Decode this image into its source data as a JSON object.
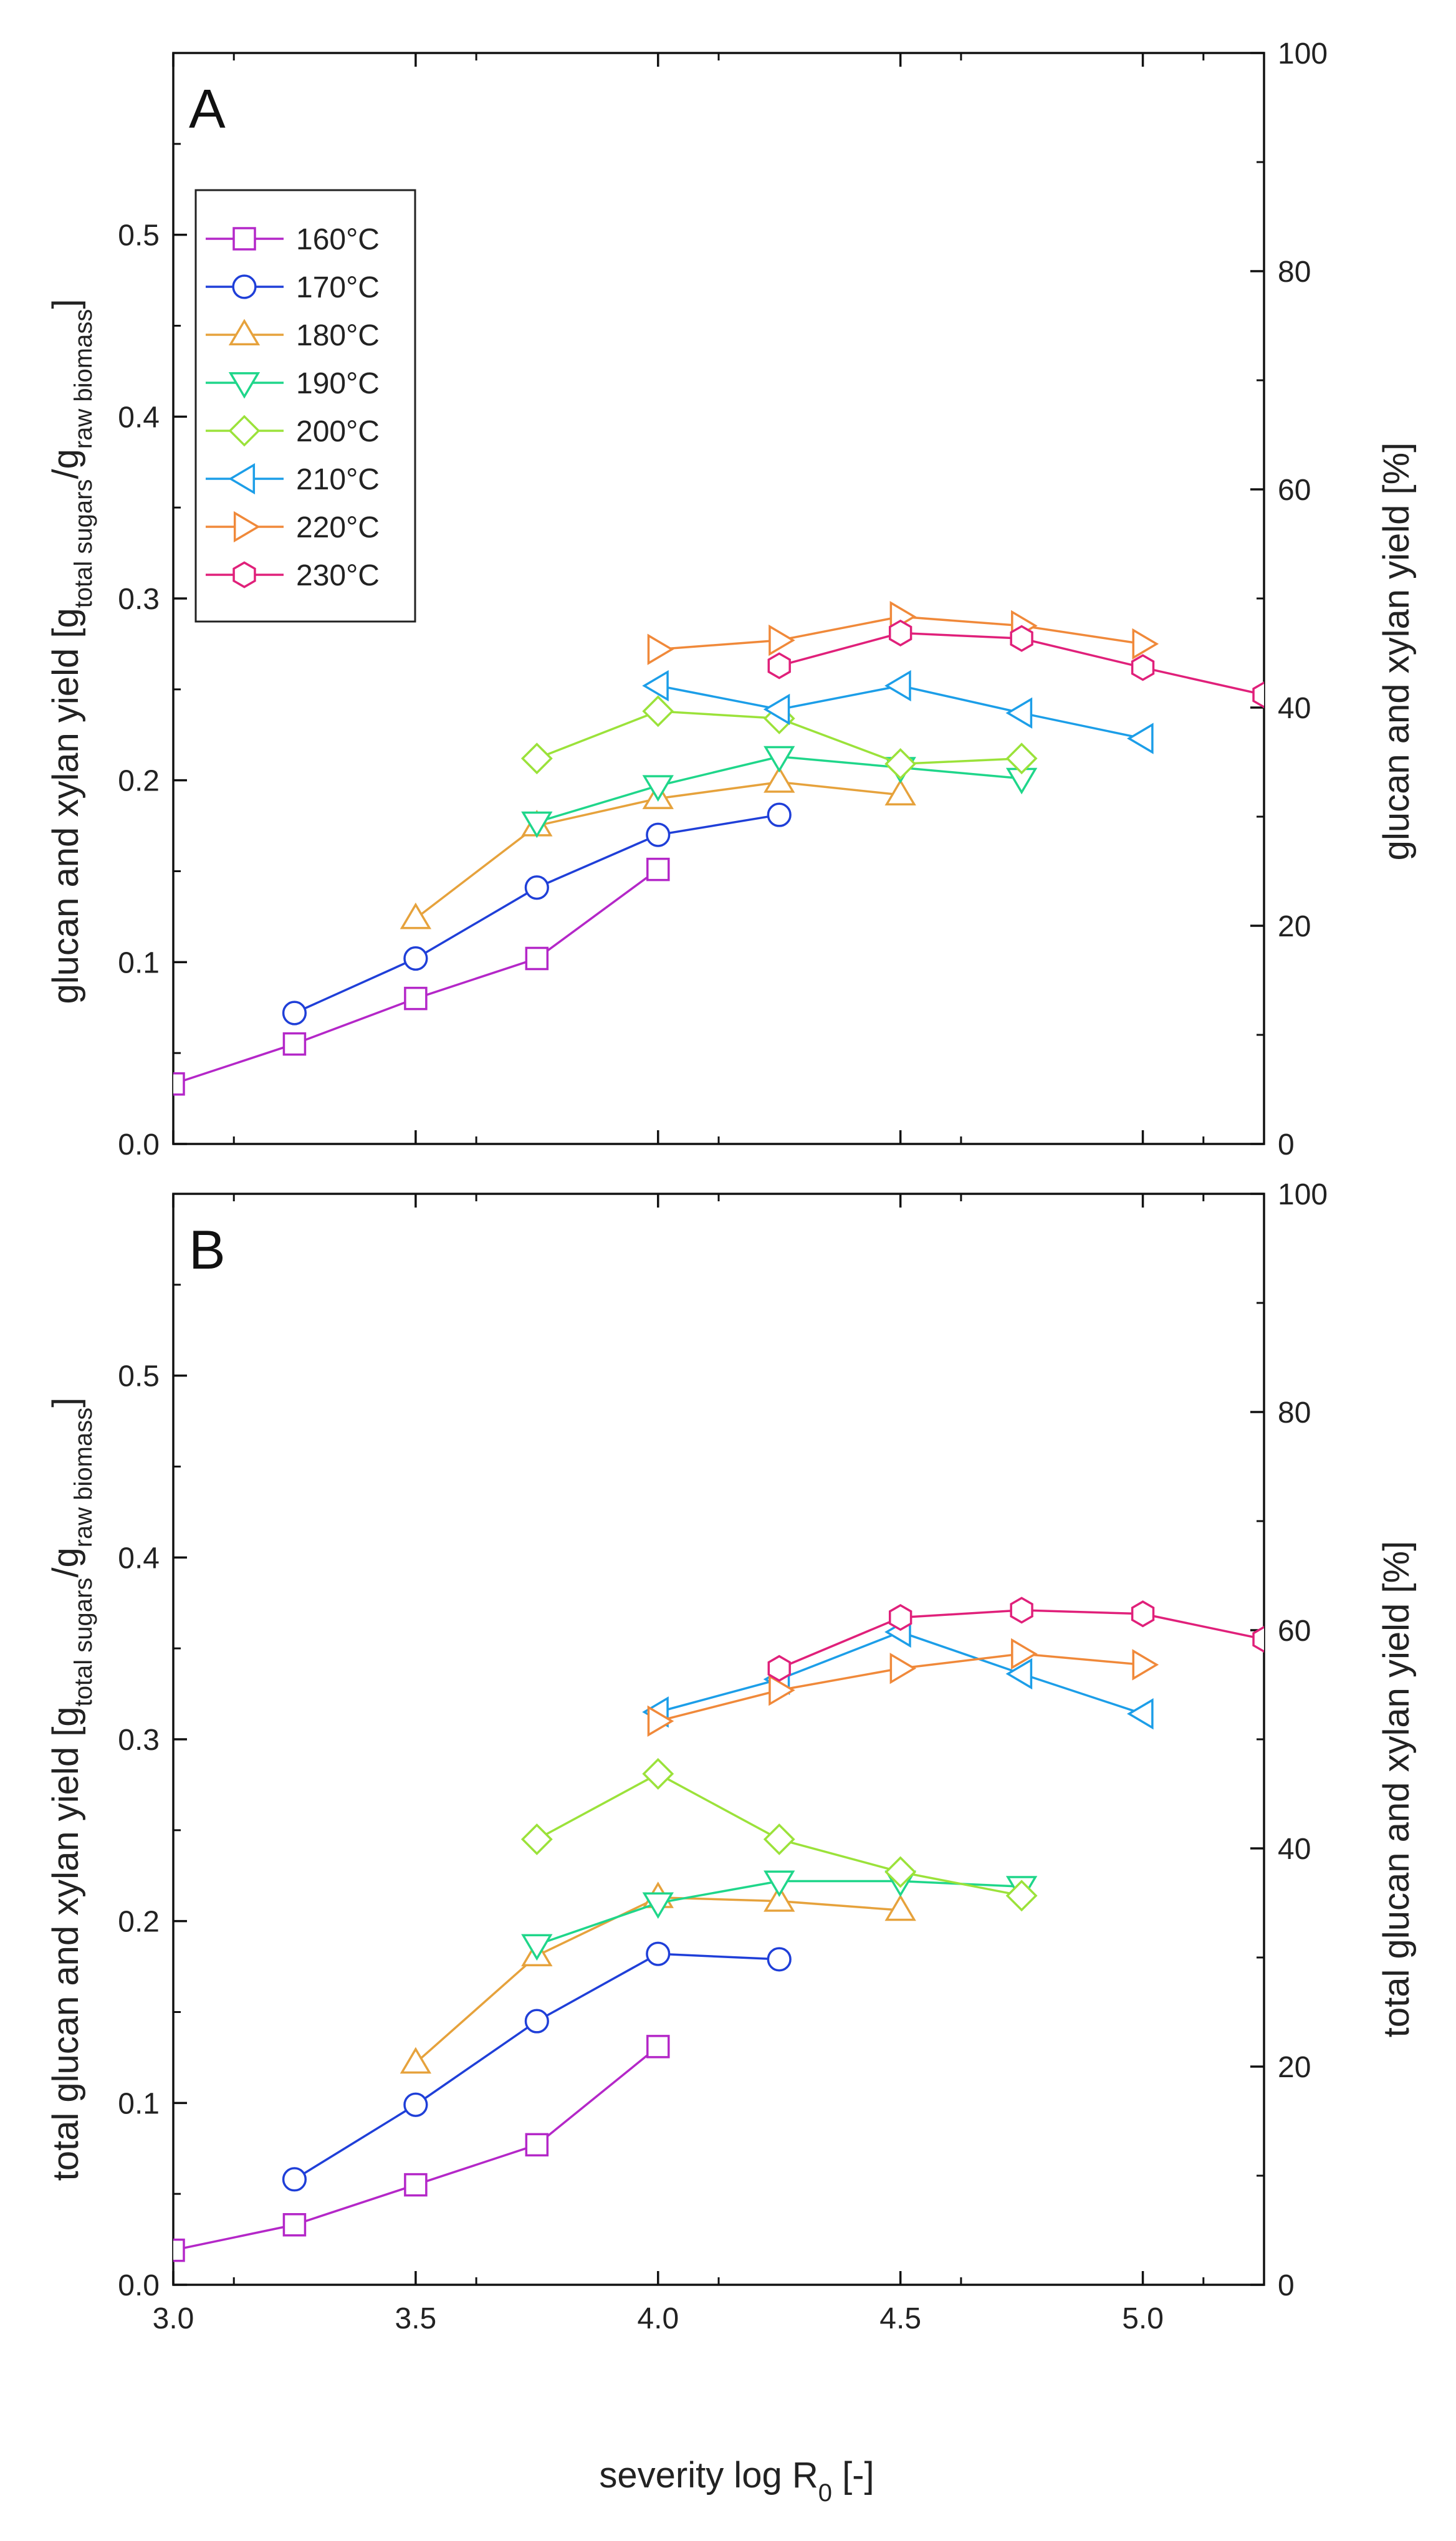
{
  "chart_data": [
    {
      "type": "line",
      "panel_label": "A",
      "ylabel_parts": [
        "glucan and xylan yield [g",
        "total sugars",
        "/g",
        "raw biomass",
        "]"
      ],
      "y2label": "glucan and xylan yield [%]",
      "xlabel": "",
      "xlim": [
        3.0,
        5.25
      ],
      "ylim": [
        0.0,
        0.6
      ],
      "y2lim": [
        0,
        100
      ],
      "xticks": [
        "3.0",
        "3.5",
        "4.0",
        "4.5",
        "5.0"
      ],
      "yticks": [
        "0.0",
        "0.1",
        "0.2",
        "0.3",
        "0.4",
        "0.5"
      ],
      "y2ticks": [
        "0",
        "20",
        "40",
        "60",
        "80",
        "100"
      ],
      "legend_position": "top-left",
      "series": [
        {
          "name": "160°C",
          "color": "#b427c8",
          "marker": "square",
          "x": [
            3.0,
            3.25,
            3.5,
            3.75,
            4.0
          ],
          "values": [
            0.033,
            0.055,
            0.08,
            0.102,
            0.151
          ]
        },
        {
          "name": "170°C",
          "color": "#1f3fd8",
          "marker": "circle",
          "x": [
            3.25,
            3.5,
            3.75,
            4.0,
            4.25
          ],
          "values": [
            0.072,
            0.102,
            0.141,
            0.17,
            0.181
          ]
        },
        {
          "name": "180°C",
          "color": "#e6a23c",
          "marker": "triangle-up",
          "x": [
            3.5,
            3.75,
            4.0,
            4.25,
            4.5
          ],
          "values": [
            0.124,
            0.175,
            0.19,
            0.199,
            0.192
          ]
        },
        {
          "name": "190°C",
          "color": "#1fd68a",
          "marker": "triangle-down",
          "x": [
            3.75,
            4.0,
            4.25,
            4.5,
            4.75
          ],
          "values": [
            0.177,
            0.197,
            0.213,
            0.207,
            0.201
          ]
        },
        {
          "name": "200°C",
          "color": "#9be23a",
          "marker": "diamond",
          "x": [
            3.75,
            4.0,
            4.25,
            4.5,
            4.75
          ],
          "values": [
            0.212,
            0.238,
            0.234,
            0.209,
            0.212
          ]
        },
        {
          "name": "210°C",
          "color": "#1c9ee8",
          "marker": "triangle-left",
          "x": [
            4.0,
            4.25,
            4.5,
            4.75,
            5.0
          ],
          "values": [
            0.252,
            0.239,
            0.252,
            0.237,
            0.223
          ]
        },
        {
          "name": "220°C",
          "color": "#f0893a",
          "marker": "triangle-right",
          "x": [
            4.0,
            4.25,
            4.5,
            4.75,
            5.0
          ],
          "values": [
            0.272,
            0.277,
            0.29,
            0.285,
            0.275
          ]
        },
        {
          "name": "230°C",
          "color": "#e0207a",
          "marker": "hexagon",
          "x": [
            4.25,
            4.5,
            4.75,
            5.0,
            5.25
          ],
          "values": [
            0.263,
            0.281,
            0.278,
            0.262,
            0.247
          ]
        }
      ]
    },
    {
      "type": "line",
      "panel_label": "B",
      "ylabel_parts": [
        "total glucan and xylan yield [g",
        "total sugars",
        "/g",
        "raw biomass",
        "]"
      ],
      "y2label": "total glucan and xylan yield [%]",
      "xlabel_parts": [
        "severity log R",
        "0",
        " [-]"
      ],
      "xlim": [
        3.0,
        5.25
      ],
      "ylim": [
        0.0,
        0.6
      ],
      "y2lim": [
        0,
        100
      ],
      "xticks": [
        "3.0",
        "3.5",
        "4.0",
        "4.5",
        "5.0"
      ],
      "yticks": [
        "0.0",
        "0.1",
        "0.2",
        "0.3",
        "0.4",
        "0.5"
      ],
      "y2ticks": [
        "0",
        "20",
        "40",
        "60",
        "80",
        "100"
      ],
      "series": [
        {
          "name": "160°C",
          "color": "#b427c8",
          "marker": "square",
          "x": [
            3.0,
            3.25,
            3.5,
            3.75,
            4.0
          ],
          "values": [
            0.019,
            0.033,
            0.055,
            0.077,
            0.131
          ]
        },
        {
          "name": "170°C",
          "color": "#1f3fd8",
          "marker": "circle",
          "x": [
            3.25,
            3.5,
            3.75,
            4.0,
            4.25
          ],
          "values": [
            0.058,
            0.099,
            0.145,
            0.182,
            0.179
          ]
        },
        {
          "name": "180°C",
          "color": "#e6a23c",
          "marker": "triangle-up",
          "x": [
            3.5,
            3.75,
            4.0,
            4.25,
            4.5
          ],
          "values": [
            0.122,
            0.181,
            0.213,
            0.211,
            0.206
          ]
        },
        {
          "name": "190°C",
          "color": "#1fd68a",
          "marker": "triangle-down",
          "x": [
            3.75,
            4.0,
            4.25,
            4.5,
            4.75
          ],
          "values": [
            0.187,
            0.21,
            0.222,
            0.222,
            0.219
          ]
        },
        {
          "name": "200°C",
          "color": "#9be23a",
          "marker": "diamond",
          "x": [
            3.75,
            4.0,
            4.25,
            4.5,
            4.75
          ],
          "values": [
            0.245,
            0.281,
            0.245,
            0.227,
            0.214
          ]
        },
        {
          "name": "210°C",
          "color": "#1c9ee8",
          "marker": "triangle-left",
          "x": [
            4.0,
            4.25,
            4.5,
            4.75,
            5.0
          ],
          "values": [
            0.315,
            0.333,
            0.359,
            0.336,
            0.314
          ]
        },
        {
          "name": "220°C",
          "color": "#f0893a",
          "marker": "triangle-right",
          "x": [
            4.0,
            4.25,
            4.5,
            4.75,
            5.0
          ],
          "values": [
            0.31,
            0.327,
            0.339,
            0.347,
            0.341
          ]
        },
        {
          "name": "230°C",
          "color": "#e0207a",
          "marker": "hexagon",
          "x": [
            4.25,
            4.5,
            4.75,
            5.0,
            5.25
          ],
          "values": [
            0.339,
            0.367,
            0.371,
            0.369,
            0.355
          ]
        }
      ]
    }
  ]
}
